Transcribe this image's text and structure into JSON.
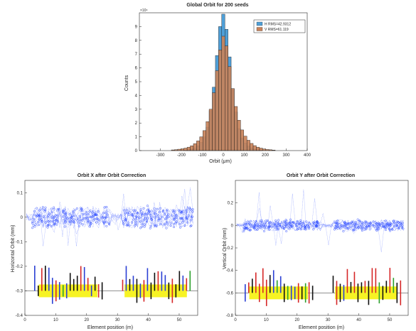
{
  "chart_data": [
    {
      "type": "histogram",
      "title": "Global Orbit for 200 seeds",
      "xlabel": "Orbit (μm)",
      "ylabel": "Counts",
      "xlim": [
        -400,
        400
      ],
      "ylim": [
        0,
        10
      ],
      "y_exponent": "×10⁴",
      "x_ticks": [
        -300,
        -200,
        -100,
        0,
        100,
        200,
        300,
        400
      ],
      "y_ticks": [
        0,
        1,
        2,
        3,
        4,
        5,
        6,
        7,
        8,
        9
      ],
      "legend_position": "top-right",
      "series": [
        {
          "name": "H RMS=42.9312",
          "color": "#4f9fd7",
          "bin_centers": [
            -180,
            -165,
            -150,
            -135,
            -120,
            -105,
            -90,
            -75,
            -60,
            -45,
            -30,
            -15,
            0,
            15,
            30,
            45,
            60,
            75,
            90,
            105,
            120,
            135,
            150,
            165,
            180
          ],
          "values": [
            0.03,
            0.06,
            0.1,
            0.2,
            0.35,
            0.6,
            1.0,
            1.7,
            2.9,
            4.6,
            6.9,
            9.0,
            9.9,
            8.8,
            6.8,
            4.5,
            2.8,
            1.6,
            0.9,
            0.55,
            0.32,
            0.18,
            0.1,
            0.05,
            0.03
          ]
        },
        {
          "name": "V RMS=61.119",
          "color": "#c8825a",
          "bin_centers": [
            -240,
            -225,
            -210,
            -195,
            -180,
            -165,
            -150,
            -135,
            -120,
            -105,
            -90,
            -75,
            -60,
            -45,
            -30,
            -15,
            0,
            15,
            30,
            45,
            60,
            75,
            90,
            105,
            120,
            135,
            150,
            165,
            180,
            195,
            210,
            225,
            240
          ],
          "values": [
            0.05,
            0.07,
            0.1,
            0.13,
            0.18,
            0.25,
            0.35,
            0.5,
            0.7,
            1.0,
            1.45,
            2.1,
            3.0,
            4.2,
            5.8,
            7.3,
            8.3,
            7.6,
            6.1,
            4.5,
            3.2,
            2.2,
            1.5,
            1.05,
            0.75,
            0.52,
            0.36,
            0.25,
            0.18,
            0.12,
            0.08,
            0.06,
            0.04
          ]
        }
      ]
    },
    {
      "type": "scatter",
      "title": "Orbit X after Orbit Correction",
      "xlabel": "Element position (m)",
      "ylabel": "Horizontal Orbit (mm)",
      "xlim": [
        0,
        56
      ],
      "ylim": [
        -0.4,
        0.15
      ],
      "x_ticks": [
        0,
        10,
        20,
        30,
        40,
        50
      ],
      "y_ticks": [
        -0.4,
        -0.3,
        -0.2,
        -0.1,
        0,
        0.1
      ],
      "lattice_baseline": -0.3,
      "orbit_color": "#1f3fff"
    },
    {
      "type": "scatter",
      "title": "Orbit Y after Orbit Correction",
      "xlabel": "Element position (m)",
      "ylabel": "Vertical Orbit (mm)",
      "xlim": [
        0,
        56
      ],
      "ylim": [
        -0.8,
        0.4
      ],
      "x_ticks": [
        0,
        10,
        20,
        30,
        40,
        50
      ],
      "y_ticks": [
        -0.8,
        -0.6,
        -0.4,
        -0.2,
        0,
        0.2
      ],
      "lattice_baseline": -0.6,
      "orbit_color": "#1f3fff"
    }
  ]
}
